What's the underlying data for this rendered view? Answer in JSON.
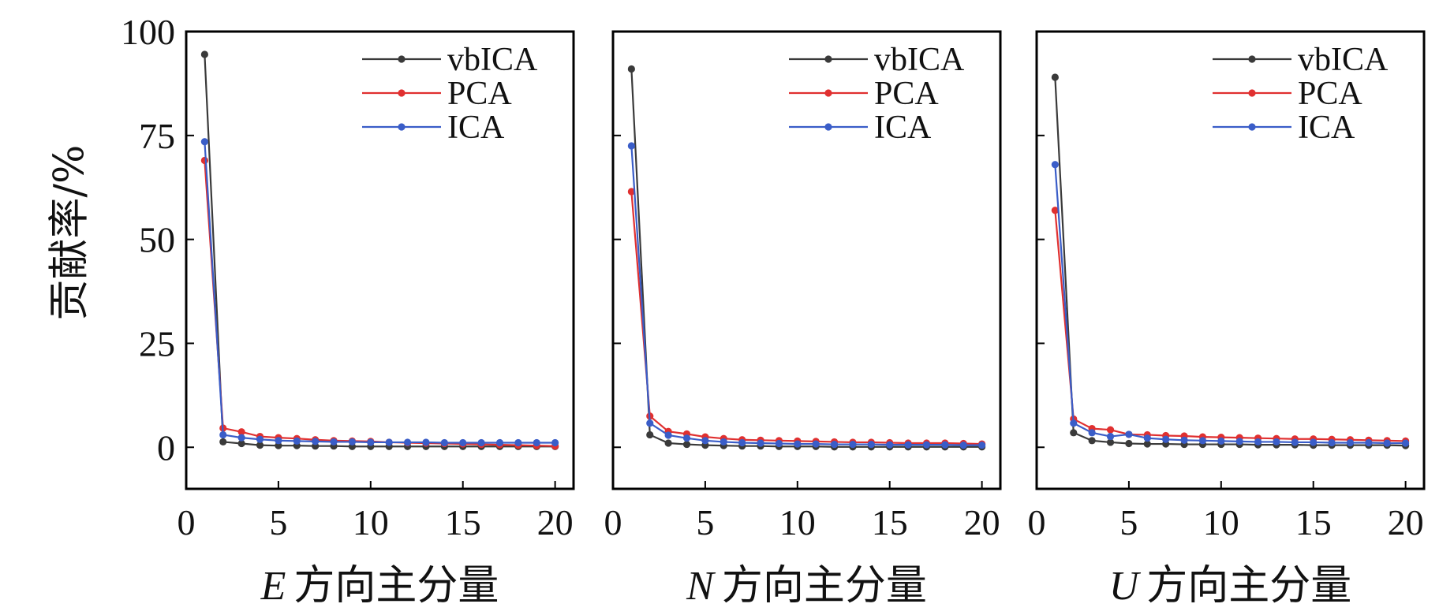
{
  "chart_data": [
    {
      "type": "line",
      "panel": "E",
      "x": [
        1,
        2,
        3,
        4,
        5,
        6,
        7,
        8,
        9,
        10,
        11,
        12,
        13,
        14,
        15,
        16,
        17,
        18,
        19,
        20
      ],
      "series": [
        {
          "name": "vbICA",
          "color": "#3a3a3a",
          "values": [
            94.5,
            1.3,
            0.9,
            0.5,
            0.4,
            0.4,
            0.3,
            0.3,
            0.2,
            0.2,
            0.2,
            0.2,
            0.2,
            0.2,
            0.2,
            0.2,
            0.2,
            0.2,
            0.2,
            0.2
          ]
        },
        {
          "name": "PCA",
          "color": "#e03030",
          "values": [
            69,
            4.6,
            3.7,
            2.6,
            2.3,
            2.1,
            1.8,
            1.6,
            1.5,
            1.4,
            1.2,
            1.1,
            1,
            0.9,
            0.8,
            0.7,
            0.6,
            0.5,
            0.4,
            0.3
          ]
        },
        {
          "name": "ICA",
          "color": "#3a5dc8",
          "values": [
            73.5,
            3,
            2.3,
            1.9,
            1.6,
            1.5,
            1.4,
            1.3,
            1.3,
            1.2,
            1.2,
            1.2,
            1.2,
            1.1,
            1.1,
            1.1,
            1.1,
            1.1,
            1.1,
            1.1
          ]
        }
      ],
      "xlim": [
        0,
        21
      ],
      "ylim": [
        -10,
        100
      ],
      "xticks": [
        0,
        5,
        10,
        15,
        20
      ],
      "yticks": [
        0,
        25,
        50,
        75,
        100
      ],
      "xlabel_italic": "E",
      "xlabel_rest": "方向主分量",
      "legend": "top-right"
    },
    {
      "type": "line",
      "panel": "N",
      "x": [
        1,
        2,
        3,
        4,
        5,
        6,
        7,
        8,
        9,
        10,
        11,
        12,
        13,
        14,
        15,
        16,
        17,
        18,
        19,
        20
      ],
      "series": [
        {
          "name": "vbICA",
          "color": "#3a3a3a",
          "values": [
            91,
            3,
            1,
            0.7,
            0.5,
            0.4,
            0.3,
            0.3,
            0.2,
            0.2,
            0.2,
            0.1,
            0.1,
            0.1,
            0.1,
            0.1,
            0.1,
            0.1,
            0.1,
            0.1
          ]
        },
        {
          "name": "PCA",
          "color": "#e03030",
          "values": [
            61.5,
            7.5,
            3.8,
            3.2,
            2.5,
            2.1,
            1.8,
            1.7,
            1.6,
            1.5,
            1.4,
            1.3,
            1.2,
            1.2,
            1.1,
            1,
            1,
            1,
            0.9,
            0.8
          ]
        },
        {
          "name": "ICA",
          "color": "#3a5dc8",
          "values": [
            72.5,
            5.8,
            2.9,
            2.2,
            1.6,
            1.3,
            1.1,
            1,
            0.9,
            0.8,
            0.8,
            0.7,
            0.7,
            0.7,
            0.6,
            0.6,
            0.6,
            0.6,
            0.5,
            0.5
          ]
        }
      ],
      "xlim": [
        0,
        21
      ],
      "ylim": [
        -10,
        100
      ],
      "xticks": [
        0,
        5,
        10,
        15,
        20
      ],
      "yticks": [
        0,
        25,
        50,
        75,
        100
      ],
      "xlabel_italic": "N",
      "xlabel_rest": "方向主分量",
      "legend": "top-right"
    },
    {
      "type": "line",
      "panel": "U",
      "x": [
        1,
        2,
        3,
        4,
        5,
        6,
        7,
        8,
        9,
        10,
        11,
        12,
        13,
        14,
        15,
        16,
        17,
        18,
        19,
        20
      ],
      "series": [
        {
          "name": "vbICA",
          "color": "#3a3a3a",
          "values": [
            89,
            3.5,
            1.6,
            1.2,
            0.9,
            0.8,
            0.8,
            0.7,
            0.7,
            0.7,
            0.7,
            0.6,
            0.6,
            0.6,
            0.5,
            0.5,
            0.5,
            0.5,
            0.5,
            0.4
          ]
        },
        {
          "name": "PCA",
          "color": "#e03030",
          "values": [
            57,
            6.8,
            4.5,
            4.2,
            3.1,
            3,
            2.8,
            2.7,
            2.5,
            2.4,
            2.3,
            2.2,
            2.1,
            2,
            2,
            1.9,
            1.8,
            1.7,
            1.6,
            1.5
          ]
        },
        {
          "name": "ICA",
          "color": "#3a5dc8",
          "values": [
            68,
            5.8,
            3.5,
            2.6,
            3.1,
            2.2,
            1.9,
            1.7,
            1.6,
            1.5,
            1.4,
            1.3,
            1.3,
            1.2,
            1.2,
            1.1,
            1.1,
            1.1,
            1,
            1
          ]
        }
      ],
      "xlim": [
        0,
        21
      ],
      "ylim": [
        -10,
        100
      ],
      "xticks": [
        0,
        5,
        10,
        15,
        20
      ],
      "yticks": [
        0,
        25,
        50,
        75,
        100
      ],
      "xlabel_italic": "U",
      "xlabel_rest": "方向主分量",
      "legend": "top-right"
    }
  ],
  "ylabel": "贡献率/%"
}
